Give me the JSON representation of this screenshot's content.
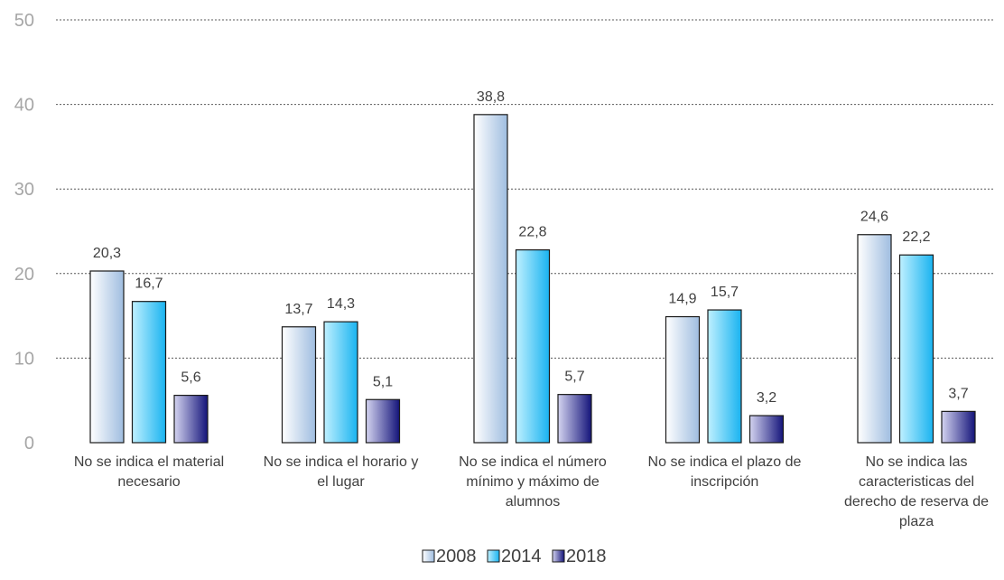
{
  "chart_data": {
    "type": "bar",
    "categories": [
      [
        "No se indica el material",
        "necesario"
      ],
      [
        "No se indica el horario y",
        "el lugar"
      ],
      [
        "No se indica el número",
        "mínimo y máximo de",
        "alumnos"
      ],
      [
        "No se indica el plazo de",
        "inscripción"
      ],
      [
        "No se indica las",
        "caracteristicas del",
        "derecho de reserva de",
        "plaza"
      ]
    ],
    "series": [
      {
        "name": "2008",
        "values": [
          20.3,
          13.7,
          38.8,
          14.9,
          24.6
        ],
        "labels": [
          "20,3",
          "13,7",
          "38,8",
          "14,9",
          "24,6"
        ],
        "gradient": [
          "#ffffff",
          "#9fbde0"
        ]
      },
      {
        "name": "2014",
        "values": [
          16.7,
          14.3,
          22.8,
          15.7,
          22.2
        ],
        "labels": [
          "16,7",
          "14,3",
          "22,8",
          "15,7",
          "22,2"
        ],
        "gradient": [
          "#bff0ff",
          "#19b3f0"
        ]
      },
      {
        "name": "2018",
        "values": [
          5.6,
          5.1,
          5.7,
          3.2,
          3.7
        ],
        "labels": [
          "5,6",
          "5,1",
          "5,7",
          "3,2",
          "3,7"
        ],
        "gradient": [
          "#d4d4f0",
          "#14147a"
        ]
      }
    ],
    "ylim": [
      0,
      50
    ],
    "yticks": [
      0,
      10,
      20,
      30,
      40,
      50
    ],
    "grid": true,
    "legend_position": "bottom-center"
  }
}
